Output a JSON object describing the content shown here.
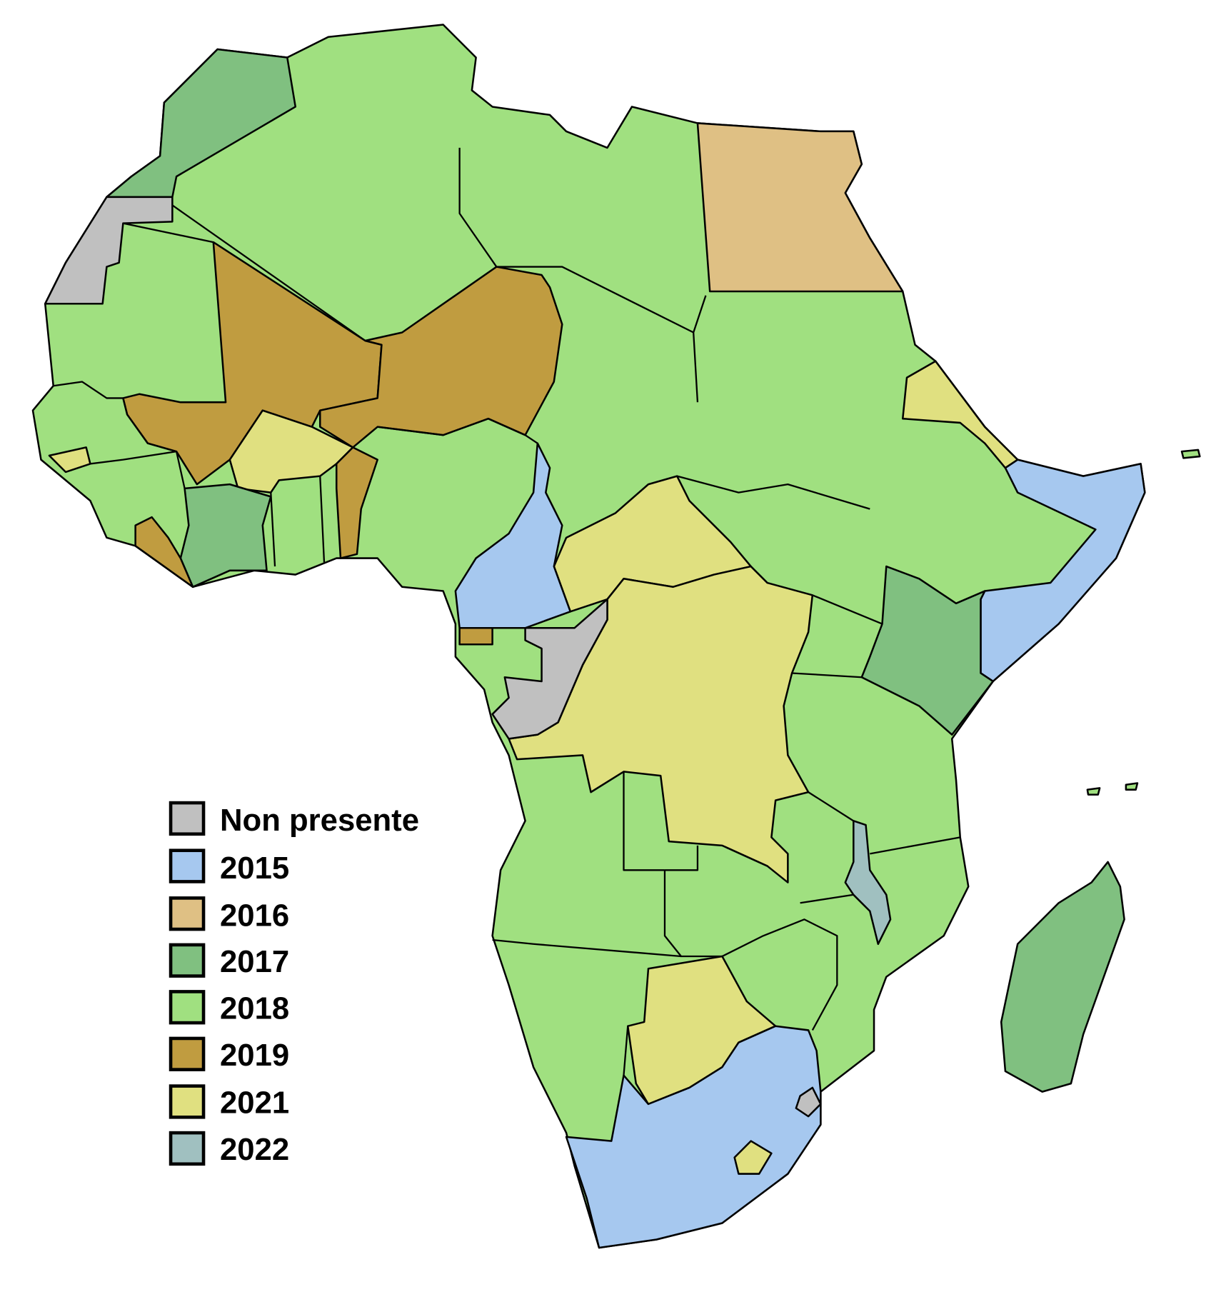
{
  "legend": {
    "items": [
      {
        "label": "Non presente",
        "color": "#c0c0c0"
      },
      {
        "label": "2015",
        "color": "#a6c8ef"
      },
      {
        "label": "2016",
        "color": "#dfc084"
      },
      {
        "label": "2017",
        "color": "#80c080"
      },
      {
        "label": "2018",
        "color": "#a0e080"
      },
      {
        "label": "2019",
        "color": "#c09c40"
      },
      {
        "label": "2021",
        "color": "#e0e080"
      },
      {
        "label": "2022",
        "color": "#a0c0c0"
      }
    ]
  }
}
